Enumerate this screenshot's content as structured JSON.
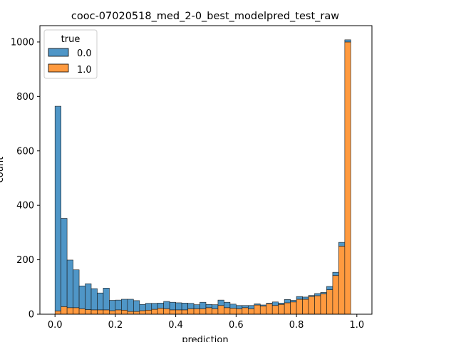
{
  "chart_data": {
    "type": "bar",
    "stacked": true,
    "title": "cooc-07020518_med_2-0_best_modelpred_test_raw",
    "xlabel": "prediction",
    "ylabel": "count",
    "xlim": [
      -0.05,
      1.05
    ],
    "ylim": [
      0,
      1060
    ],
    "bin_start": 0.0,
    "bin_width": 0.02,
    "x_ticks": [
      "0.0",
      "0.2",
      "0.4",
      "0.6",
      "0.8",
      "1.0"
    ],
    "x_tick_values": [
      0.0,
      0.2,
      0.4,
      0.6,
      0.8,
      1.0
    ],
    "y_ticks": [
      "0",
      "200",
      "400",
      "600",
      "800",
      "1000"
    ],
    "y_tick_values": [
      0,
      200,
      400,
      600,
      800,
      1000
    ],
    "legend": {
      "title": "true",
      "placement": "top-left"
    },
    "series": [
      {
        "name": "1.0",
        "color": "#ff9a3f",
        "values": [
          12,
          28,
          24,
          24,
          20,
          17,
          16,
          16,
          16,
          13,
          16,
          15,
          10,
          10,
          13,
          15,
          18,
          22,
          20,
          16,
          16,
          16,
          20,
          20,
          20,
          24,
          20,
          32,
          24,
          22,
          20,
          24,
          20,
          34,
          30,
          38,
          32,
          36,
          42,
          45,
          55,
          55,
          65,
          68,
          75,
          90,
          142,
          250,
          1000
        ]
      },
      {
        "name": "0.0",
        "color": "#4f96c7",
        "values": [
          752,
          324,
          175,
          139,
          84,
          95,
          78,
          62,
          80,
          38,
          36,
          40,
          45,
          40,
          23,
          25,
          22,
          19,
          27,
          28,
          26,
          25,
          20,
          15,
          24,
          12,
          15,
          20,
          20,
          15,
          12,
          8,
          12,
          4,
          4,
          2,
          13,
          5,
          12,
          6,
          10,
          8,
          4,
          8,
          5,
          12,
          12,
          14,
          8
        ]
      }
    ]
  }
}
